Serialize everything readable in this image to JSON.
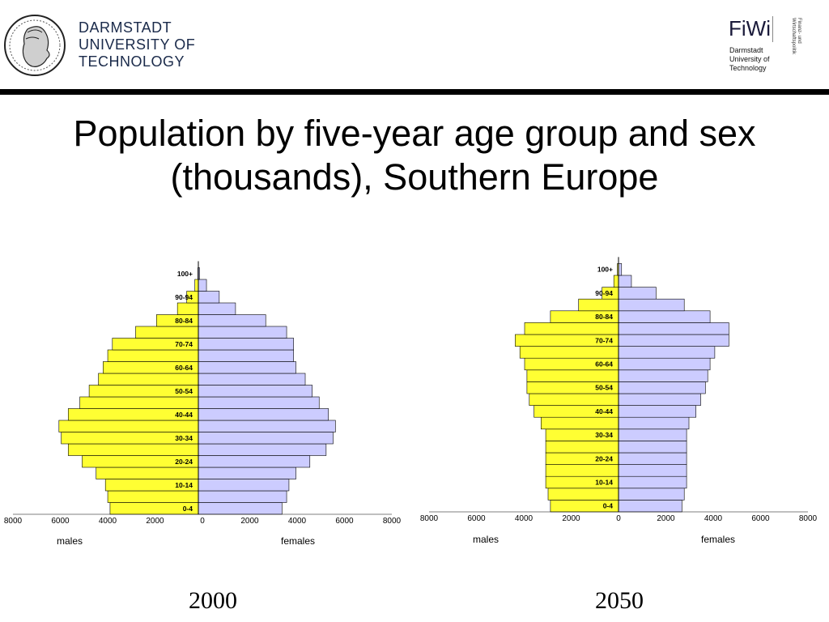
{
  "header": {
    "university_lines": [
      "DARMSTADT",
      "UNIVERSITY OF",
      "TECHNOLOGY"
    ],
    "fiwi_title": "FiWi",
    "fiwi_vertical_lines": [
      "Finanz- und",
      "Wirtschaftspolitik"
    ],
    "fiwi_sub_lines": [
      "Darmstadt",
      "University of",
      "Technology"
    ]
  },
  "title_lines": [
    "Population by five-year age group and sex",
    "(thousands), Southern Europe"
  ],
  "colors": {
    "males": "#ffff33",
    "females": "#ccccff",
    "outline": "#000000"
  },
  "chart_data": [
    {
      "type": "bar",
      "orientation": "horizontal-pyramid",
      "caption": "2000",
      "categories": [
        "0-4",
        "5-9",
        "10-14",
        "15-19",
        "20-24",
        "25-29",
        "30-34",
        "35-39",
        "40-44",
        "45-49",
        "50-54",
        "55-59",
        "60-64",
        "65-69",
        "70-74",
        "75-79",
        "80-84",
        "85-89",
        "90-94",
        "95-99",
        "100+"
      ],
      "category_labels_shown": [
        "0-4",
        "10-14",
        "20-24",
        "30-34",
        "40-44",
        "50-54",
        "60-64",
        "70-74",
        "80-84",
        "90-94",
        "100+"
      ],
      "series": [
        {
          "name": "males",
          "values": [
            3800,
            3900,
            4000,
            4400,
            5000,
            5600,
            5900,
            6000,
            5600,
            5100,
            4700,
            4300,
            4100,
            3900,
            3700,
            2700,
            1800,
            900,
            500,
            150,
            20
          ]
        },
        {
          "name": "females",
          "values": [
            3600,
            3800,
            3900,
            4200,
            4800,
            5500,
            5800,
            5900,
            5600,
            5200,
            4900,
            4600,
            4200,
            4100,
            4100,
            3800,
            2900,
            1600,
            900,
            350,
            50
          ]
        }
      ],
      "x_ticks": [
        "8000",
        "6000",
        "4000",
        "2000",
        "0",
        "2000",
        "4000",
        "6000",
        "8000"
      ],
      "xlim": [
        -8000,
        8000
      ],
      "xlabels": [
        "males",
        "females"
      ]
    },
    {
      "type": "bar",
      "orientation": "horizontal-pyramid",
      "caption": "2050",
      "categories": [
        "0-4",
        "5-9",
        "10-14",
        "15-19",
        "20-24",
        "25-29",
        "30-34",
        "35-39",
        "40-44",
        "45-49",
        "50-54",
        "55-59",
        "60-64",
        "65-69",
        "70-74",
        "75-79",
        "80-84",
        "85-89",
        "90-94",
        "95-99",
        "100+"
      ],
      "category_labels_shown": [
        "0-4",
        "10-14",
        "20-24",
        "30-34",
        "40-44",
        "50-54",
        "60-64",
        "70-74",
        "80-84",
        "90-94",
        "100+"
      ],
      "series": [
        {
          "name": "males",
          "values": [
            2900,
            3000,
            3100,
            3100,
            3100,
            3100,
            3100,
            3300,
            3600,
            3800,
            3900,
            3900,
            4000,
            4200,
            4400,
            4000,
            2900,
            1700,
            700,
            200,
            50
          ]
        },
        {
          "name": "females",
          "values": [
            2700,
            2800,
            2900,
            2900,
            2900,
            2900,
            2900,
            3000,
            3300,
            3500,
            3700,
            3800,
            3900,
            4100,
            4700,
            4700,
            3900,
            2800,
            1600,
            550,
            130
          ]
        }
      ],
      "x_ticks": [
        "8000",
        "6000",
        "4000",
        "2000",
        "0",
        "2000",
        "4000",
        "6000",
        "8000"
      ],
      "xlim": [
        -8000,
        8000
      ],
      "xlabels": [
        "males",
        "females"
      ]
    }
  ]
}
